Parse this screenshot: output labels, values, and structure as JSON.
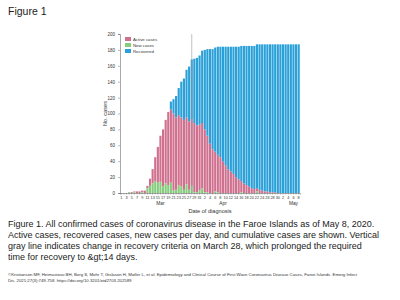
{
  "page": {
    "heading": "Figure 1",
    "caption": [
      "Figure 1. All confirmed cases of coronavirus disease in the Faroe Islands as of May 8, 2020.",
      "Active cases, recovered cases, new cases per day, and cumulative cases are shown. Vertical",
      "gray line indicates change in recovery criteria on March 28, which prolonged the required",
      "time for recovery to &gt;14 days."
    ],
    "citation": [
      "©Kristiansen MF, Heimustovu BH, Borg S, Mohr T, Gislason H, Møller L, et al. Epidemiology and Clinical Course of First Wave Coronavirus Disease Cases, Faroe Islands. Emerg Infect",
      "Dis. 2021;27(3):749-758. https://doi.org/10.3201/eid2703.202589"
    ]
  },
  "chart_data": {
    "type": "bar",
    "stacked": true,
    "grid": false,
    "legend": "upper left",
    "x_label": "Date of diagnosis",
    "y_label": "No. cases",
    "categories": [
      "1",
      null,
      "3",
      null,
      "5",
      null,
      "7",
      null,
      "9",
      null,
      "11",
      null,
      "13",
      null,
      "15",
      null,
      "17",
      null,
      "19",
      null,
      "21",
      null,
      "23",
      null,
      "25",
      null,
      "27",
      null,
      "29",
      null,
      "31",
      null,
      "2",
      null,
      "4",
      null,
      "6",
      null,
      "8",
      null,
      "10",
      null,
      "12",
      null,
      "14",
      null,
      "16",
      null,
      "18",
      null,
      "20",
      null,
      "22",
      null,
      "24",
      null,
      "26",
      null,
      "28",
      null,
      "30",
      null,
      "2",
      null,
      "4",
      null,
      "6",
      null,
      "8"
    ],
    "annotations": [
      {
        "text": "Mar",
        "x": 15
      },
      {
        "text": "Apr",
        "x": 39
      },
      {
        "text": "May",
        "x": 66
      },
      {
        "type": "vline",
        "x": 27
      }
    ],
    "ylim": [
      0,
      200
    ],
    "yticks": [
      0,
      20,
      40,
      60,
      80,
      100,
      120,
      140,
      160,
      180,
      200
    ],
    "series": [
      {
        "name": "Active cases",
        "color": "#d0708f",
        "values": [
          0,
          0,
          0,
          0,
          1,
          1,
          2,
          2,
          2,
          3,
          3,
          9,
          18,
          30,
          45,
          58,
          72,
          80,
          92,
          92,
          97,
          91,
          88,
          87,
          88,
          84,
          86,
          84,
          87,
          84,
          83,
          82,
          79,
          71,
          62,
          55,
          50,
          47,
          45,
          40,
          35,
          30,
          27,
          24,
          20,
          17,
          14,
          12,
          10,
          8,
          6,
          5,
          4,
          4,
          3,
          2,
          2,
          1,
          1,
          1,
          0,
          0,
          0,
          0,
          0,
          0,
          0,
          0,
          0
        ]
      },
      {
        "name": "New cases",
        "color": "#86cc7e",
        "values": [
          0,
          0,
          0,
          1,
          0,
          1,
          0,
          0,
          1,
          0,
          6,
          9,
          12,
          15,
          13,
          14,
          8,
          12,
          10,
          13,
          3,
          4,
          10,
          8,
          4,
          11,
          4,
          9,
          1,
          1,
          3,
          6,
          1,
          1,
          0,
          0,
          2,
          1,
          0,
          0,
          0,
          0,
          0,
          0,
          0,
          0,
          1,
          0,
          0,
          0,
          0,
          0,
          2,
          0,
          0,
          0,
          0,
          0,
          0,
          0,
          0,
          0,
          0,
          0,
          0,
          0,
          0,
          0,
          0
        ]
      },
      {
        "name": "Recovered",
        "color": "#2aa0d8",
        "values": [
          0,
          0,
          0,
          0,
          0,
          0,
          0,
          0,
          0,
          0,
          0,
          0,
          0,
          0,
          0,
          0,
          0,
          0,
          0,
          10,
          18,
          27,
          34,
          45,
          52,
          60,
          69,
          75,
          81,
          85,
          87,
          91,
          100,
          109,
          119,
          126,
          131,
          136,
          139,
          144,
          149,
          154,
          157,
          160,
          164,
          167,
          170,
          173,
          175,
          177,
          179,
          180,
          181,
          183,
          184,
          185,
          185,
          186,
          186,
          186,
          187,
          187,
          187,
          187,
          187,
          187,
          187,
          187,
          187
        ]
      }
    ]
  }
}
